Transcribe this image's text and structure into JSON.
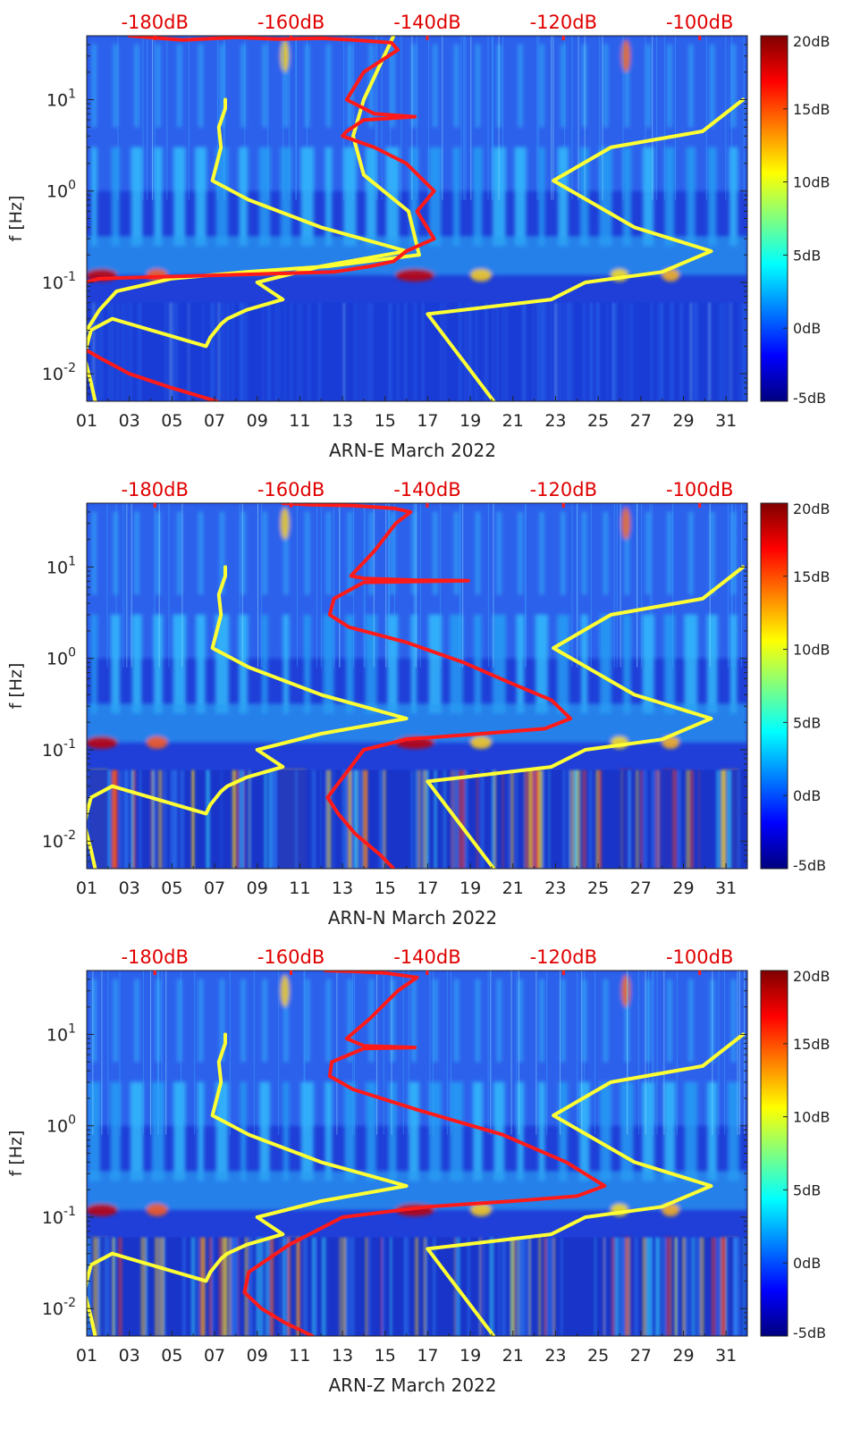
{
  "chart_data": [
    {
      "type": "heatmap",
      "xlabel": "ARN-E March 2022",
      "ylabel": "f [Hz]",
      "x_tick_labels": [
        "01",
        "03",
        "05",
        "07",
        "09",
        "11",
        "13",
        "15",
        "17",
        "19",
        "21",
        "23",
        "25",
        "27",
        "29",
        "31"
      ],
      "xlim": [
        1,
        32
      ],
      "y_scale": "log",
      "ylim": [
        0.005,
        50
      ],
      "y_tick_labels": [
        "10^-2",
        "10^-1",
        "10^0",
        "10^1"
      ],
      "top_axis_labels": [
        "-180dB",
        "-160dB",
        "-140dB",
        "-120dB",
        "-100dB"
      ],
      "top_axis_range_db": [
        -190,
        -93
      ],
      "colorbar": {
        "ticks": [
          "20dB",
          "15dB",
          "10dB",
          "5dB",
          "0dB",
          "-5dB"
        ],
        "range_db": [
          -5,
          20
        ]
      },
      "series": [
        {
          "color": "#ffff33",
          "x": [
            7.5,
            7.5,
            7.2,
            7.3,
            6.9,
            8.6,
            12.0,
            16.0,
            12.0,
            9.0,
            10.2,
            8.5,
            7.6,
            7.3,
            6.8,
            6.6,
            2.2,
            1.2,
            1.0,
            0.9,
            1.2,
            1.4
          ],
          "y": [
            10,
            8,
            5,
            3,
            1.3,
            0.8,
            0.4,
            0.22,
            0.15,
            0.1,
            0.065,
            0.05,
            0.04,
            0.035,
            0.025,
            0.02,
            0.04,
            0.03,
            0.02,
            0.015,
            0.008,
            0.005
          ]
        },
        {
          "color": "#ffff33",
          "x": [
            20.1,
            17.0,
            22.8,
            24.4,
            28.0,
            30.3,
            26.7,
            22.9,
            25.6,
            29.9,
            31.8
          ],
          "y": [
            0.005,
            0.045,
            0.065,
            0.1,
            0.13,
            0.22,
            0.4,
            1.3,
            3,
            4.5,
            10
          ]
        },
        {
          "color": "#ffff33",
          "x": [
            15.4,
            14.0,
            13.5,
            14.0,
            16.1,
            16.6,
            12.3,
            8.5,
            5.0,
            2.4,
            1.6,
            1.0
          ],
          "y": [
            50,
            10,
            4,
            1.5,
            0.6,
            0.2,
            0.15,
            0.13,
            0.11,
            0.08,
            0.05,
            0.03
          ]
        },
        {
          "color": "#ff1a1a",
          "x": [
            3.0,
            5.5,
            8.0,
            10.0,
            12.0,
            13.5,
            15.3,
            15.6,
            14.0,
            13.2,
            14.5,
            16.4,
            14.0,
            13.2,
            13.0,
            14.5,
            16.0,
            17.3,
            16.5,
            17.3,
            16.0,
            15.4,
            14.3,
            12.6,
            1.6,
            0.95
          ],
          "y": [
            50,
            45,
            48,
            46,
            47,
            45,
            42,
            35,
            20,
            10,
            7,
            6.5,
            6,
            4.5,
            4,
            3,
            2,
            1,
            0.6,
            0.3,
            0.22,
            0.17,
            0.15,
            0.13,
            0.11,
            0.1
          ]
        },
        {
          "color": "#ff1a1a",
          "x": [
            1.0,
            1.6,
            3.0,
            5.0,
            7.1
          ],
          "y": [
            0.018,
            0.015,
            0.01,
            0.007,
            0.005
          ]
        }
      ]
    },
    {
      "type": "heatmap",
      "xlabel": "ARN-N March 2022",
      "ylabel": "f [Hz]",
      "x_tick_labels": [
        "01",
        "03",
        "05",
        "07",
        "09",
        "11",
        "13",
        "15",
        "17",
        "19",
        "21",
        "23",
        "25",
        "27",
        "29",
        "31"
      ],
      "xlim": [
        1,
        32
      ],
      "y_scale": "log",
      "ylim": [
        0.005,
        50
      ],
      "y_tick_labels": [
        "10^-2",
        "10^-1",
        "10^0",
        "10^1"
      ],
      "top_axis_labels": [
        "-180dB",
        "-160dB",
        "-140dB",
        "-120dB",
        "-100dB"
      ],
      "top_axis_range_db": [
        -190,
        -93
      ],
      "colorbar": {
        "ticks": [
          "20dB",
          "15dB",
          "10dB",
          "5dB",
          "0dB",
          "-5dB"
        ],
        "range_db": [
          -5,
          20
        ]
      },
      "series": [
        {
          "color": "#ffff33",
          "x": [
            7.5,
            7.5,
            7.2,
            7.3,
            6.9,
            8.6,
            12.0,
            16.0,
            12.0,
            9.0,
            10.2,
            8.5,
            7.6,
            7.3,
            6.8,
            6.6,
            2.2,
            1.2,
            1.0,
            0.9,
            1.2,
            1.4
          ],
          "y": [
            10,
            8,
            5,
            3,
            1.3,
            0.8,
            0.4,
            0.22,
            0.15,
            0.1,
            0.065,
            0.05,
            0.04,
            0.035,
            0.025,
            0.02,
            0.04,
            0.03,
            0.02,
            0.015,
            0.008,
            0.005
          ]
        },
        {
          "color": "#ffff33",
          "x": [
            20.1,
            17.0,
            22.8,
            24.4,
            28.0,
            30.3,
            26.7,
            22.9,
            25.6,
            29.9,
            31.8
          ],
          "y": [
            0.005,
            0.045,
            0.065,
            0.1,
            0.13,
            0.22,
            0.4,
            1.3,
            3,
            4.5,
            10
          ]
        },
        {
          "color": "#ff1a1a",
          "x": [
            10.2,
            11.5,
            13.5,
            15.4,
            16.2,
            15.5,
            14.5,
            13.4,
            14.0,
            16.4,
            18.9,
            14.0,
            12.6,
            12.4,
            13.3,
            16.0,
            18.7,
            20.8,
            22.8,
            23.7,
            22.5,
            19.5,
            16.0,
            14.0,
            12.3,
            12.8,
            13.6,
            14.8,
            15.4
          ],
          "y": [
            50,
            48,
            47,
            44,
            40,
            30,
            15,
            8,
            7.5,
            7.2,
            7.1,
            6.8,
            4.5,
            3,
            2.2,
            1.5,
            0.9,
            0.55,
            0.35,
            0.22,
            0.17,
            0.15,
            0.13,
            0.1,
            0.03,
            0.02,
            0.012,
            0.007,
            0.005
          ]
        }
      ]
    },
    {
      "type": "heatmap",
      "xlabel": "ARN-Z March 2022",
      "ylabel": "f [Hz]",
      "x_tick_labels": [
        "01",
        "03",
        "05",
        "07",
        "09",
        "11",
        "13",
        "15",
        "17",
        "19",
        "21",
        "23",
        "25",
        "27",
        "29",
        "31"
      ],
      "xlim": [
        1,
        32
      ],
      "y_scale": "log",
      "ylim": [
        0.005,
        50
      ],
      "y_tick_labels": [
        "10^-2",
        "10^-1",
        "10^0",
        "10^1"
      ],
      "top_axis_labels": [
        "-180dB",
        "-160dB",
        "-140dB",
        "-120dB",
        "-100dB"
      ],
      "top_axis_range_db": [
        -190,
        -93
      ],
      "colorbar": {
        "ticks": [
          "20dB",
          "15dB",
          "10dB",
          "5dB",
          "0dB",
          "-5dB"
        ],
        "range_db": [
          -5,
          20
        ]
      },
      "series": [
        {
          "color": "#ffff33",
          "x": [
            7.5,
            7.5,
            7.2,
            7.3,
            6.9,
            8.6,
            12.0,
            16.0,
            12.0,
            9.0,
            10.2,
            8.5,
            7.6,
            7.3,
            6.8,
            6.6,
            2.2,
            1.2,
            1.0,
            0.9,
            1.2,
            1.4
          ],
          "y": [
            10,
            8,
            5,
            3,
            1.3,
            0.8,
            0.4,
            0.22,
            0.15,
            0.1,
            0.065,
            0.05,
            0.04,
            0.035,
            0.025,
            0.02,
            0.04,
            0.03,
            0.02,
            0.015,
            0.008,
            0.005
          ]
        },
        {
          "color": "#ffff33",
          "x": [
            20.1,
            17.0,
            22.8,
            24.4,
            28.0,
            30.3,
            26.7,
            22.9,
            25.6,
            29.9,
            31.8
          ],
          "y": [
            0.005,
            0.045,
            0.065,
            0.1,
            0.13,
            0.22,
            0.4,
            1.3,
            3,
            4.5,
            10
          ]
        },
        {
          "color": "#ff1a1a",
          "x": [
            12.2,
            13.5,
            15.0,
            16.5,
            15.6,
            14.3,
            13.2,
            14.0,
            16.4,
            14.0,
            12.5,
            12.4,
            13.5,
            16.5,
            20.5,
            23.5,
            25.3,
            24.0,
            21.0,
            17.0,
            13.0,
            10.5,
            8.6,
            8.4,
            9.2,
            10.3,
            11.6
          ],
          "y": [
            50,
            49,
            47,
            42,
            30,
            15,
            9,
            7.5,
            7.2,
            7,
            5,
            3.5,
            2.5,
            1.5,
            0.8,
            0.4,
            0.22,
            0.17,
            0.15,
            0.13,
            0.1,
            0.05,
            0.025,
            0.015,
            0.01,
            0.007,
            0.005
          ]
        }
      ]
    }
  ]
}
